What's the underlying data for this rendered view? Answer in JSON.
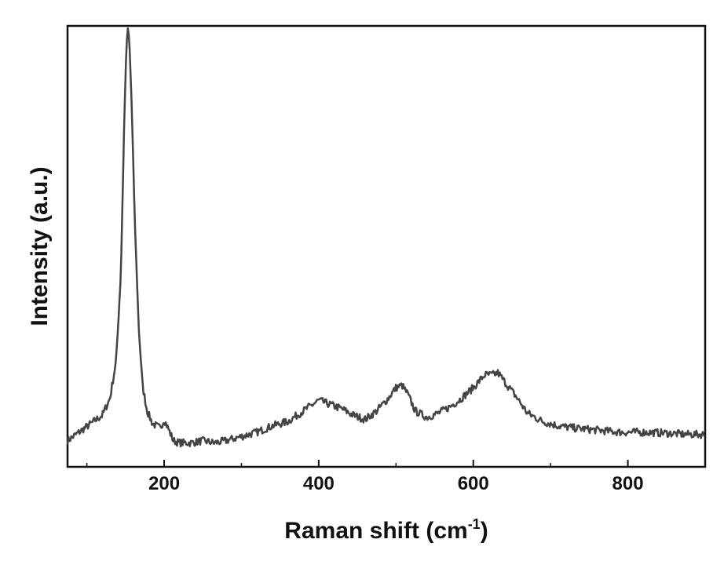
{
  "chart_data": {
    "type": "line",
    "title": "",
    "xlabel": {
      "main": "Raman shift (cm",
      "sup": "-1",
      "end": ")"
    },
    "ylabel": "Intensity (a.u.)",
    "xlim": [
      75,
      900
    ],
    "ylim": [
      0,
      100
    ],
    "x_ticks": [
      200,
      400,
      600,
      800
    ],
    "x_tick_labels": [
      "200",
      "400",
      "600",
      "800"
    ],
    "y_tick_labels": [],
    "grid": false,
    "legend": "none",
    "line_color": "#444444",
    "series": [
      {
        "x": [
          75,
          90,
          105,
          120,
          130,
          138,
          144,
          148,
          151,
          153,
          155,
          158,
          162,
          167,
          172,
          178,
          185,
          195,
          200,
          205,
          212,
          220,
          235,
          250,
          265,
          280,
          300,
          320,
          340,
          360,
          380,
          400,
          415,
          430,
          445,
          460,
          475,
          490,
          500,
          508,
          515,
          525,
          540,
          555,
          570,
          585,
          600,
          615,
          625,
          632,
          640,
          655,
          670,
          690,
          710,
          730,
          760,
          790,
          820,
          850,
          875,
          900
        ],
        "y": [
          3,
          5,
          7,
          9,
          13,
          22,
          42,
          75,
          95,
          100,
          97,
          82,
          55,
          30,
          16,
          10,
          7,
          6,
          8,
          6,
          3,
          2.5,
          2.5,
          3,
          2.5,
          3,
          4,
          5,
          6.5,
          7.5,
          10,
          12.5,
          11.5,
          10.5,
          9,
          8,
          10,
          13,
          15.5,
          16,
          14,
          10,
          8.5,
          9.5,
          11,
          13,
          15.5,
          18.5,
          18.5,
          19,
          17,
          13.5,
          9.5,
          7.5,
          6.5,
          6,
          5.5,
          5,
          5,
          4.8,
          4.5,
          4.5
        ]
      }
    ]
  }
}
